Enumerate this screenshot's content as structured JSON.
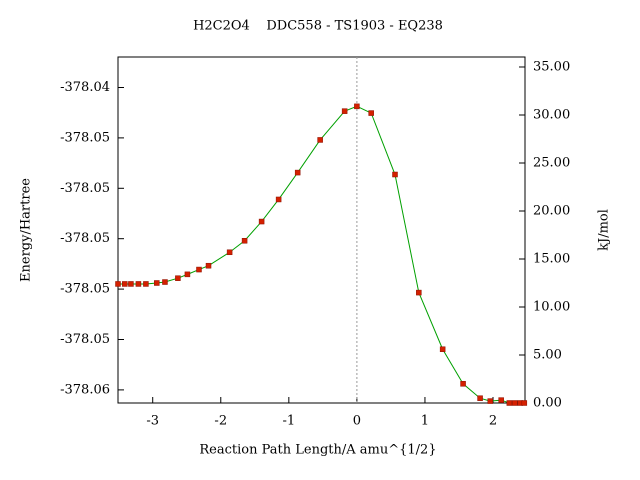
{
  "chart_data": {
    "type": "line",
    "title": "H2C2O4    DDC558 - TS1903 - EQ238",
    "xlabel": "Reaction Path Length/A amu^{1/2}",
    "ylabel": "Energy/Hartree",
    "y2label": "kJ/mol",
    "x": [
      -3.51,
      -3.41,
      -3.32,
      -3.21,
      -3.1,
      -2.94,
      -2.82,
      -2.63,
      -2.49,
      -2.32,
      -2.18,
      -1.87,
      -1.65,
      -1.4,
      -1.15,
      -0.87,
      -0.54,
      -0.18,
      0,
      0.21,
      0.56,
      0.91,
      1.26,
      1.56,
      1.81,
      1.96,
      2.12,
      2.24,
      2.32,
      2.4,
      2.46
    ],
    "series": [
      {
        "axis": "y2",
        "color": "#00a000",
        "marker_color": "#d42000",
        "values": [
          12.4,
          12.4,
          12.4,
          12.4,
          12.4,
          12.5,
          12.6,
          13.0,
          13.4,
          13.9,
          14.3,
          15.7,
          16.9,
          18.9,
          21.2,
          24.0,
          27.4,
          30.4,
          30.9,
          30.2,
          23.8,
          11.5,
          5.6,
          2.0,
          0.5,
          0.2,
          0.3,
          0,
          0,
          0,
          0
        ]
      }
    ],
    "xlim": [
      -3.51,
      2.47
    ],
    "xticks": [
      -3,
      -2,
      -1,
      0,
      1,
      2
    ],
    "ylim": [
      -378.05652,
      -378.04279
    ],
    "yticks": [
      {
        "value": -378.056,
        "label": "-378.06"
      },
      {
        "value": -378.054,
        "label": "-378.05"
      },
      {
        "value": -378.052,
        "label": "-378.05"
      },
      {
        "value": -378.05,
        "label": "-378.05"
      },
      {
        "value": -378.048,
        "label": "-378.05"
      },
      {
        "value": -378.046,
        "label": "-378.05"
      },
      {
        "value": -378.044,
        "label": "-378.04"
      }
    ],
    "y2lim": [
      0,
      36.04
    ],
    "y2ticks": [
      {
        "value": 0,
        "label": "0.00"
      },
      {
        "value": 5,
        "label": "5.00"
      },
      {
        "value": 10,
        "label": "10.00"
      },
      {
        "value": 15,
        "label": "15.00"
      },
      {
        "value": 20,
        "label": "20.00"
      },
      {
        "value": 25,
        "label": "25.00"
      },
      {
        "value": 30,
        "label": "30.00"
      },
      {
        "value": 35,
        "label": "35.00"
      }
    ],
    "vline": 0
  }
}
